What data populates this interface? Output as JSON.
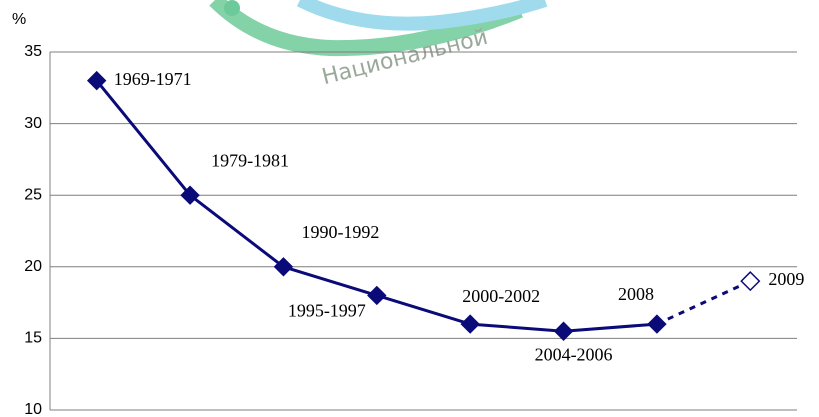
{
  "chart_data": {
    "type": "line",
    "y_label": "%",
    "watermark": "Национальной",
    "categories": [
      "1969-1971",
      "1979-1981",
      "1990-1992",
      "1995-1997",
      "2000-2002",
      "2004-2006",
      "2008",
      "2009"
    ],
    "series": [
      {
        "color": "#0a0a78",
        "values": [
          33,
          25,
          20,
          18,
          16,
          15.5,
          16,
          19
        ],
        "projected": [
          false,
          false,
          false,
          false,
          false,
          false,
          false,
          true
        ]
      }
    ],
    "ylim": [
      10,
      35
    ],
    "yticks": [
      10,
      15,
      20,
      25,
      30,
      35
    ],
    "grid": true
  }
}
